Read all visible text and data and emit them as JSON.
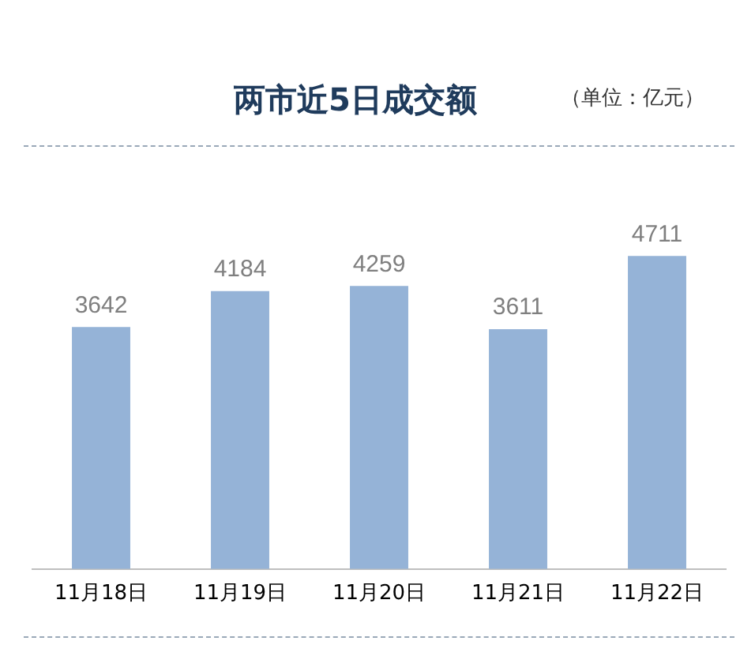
{
  "chart_data": {
    "type": "bar",
    "title": "两市近5日成交额",
    "annotations": [
      "（单位：亿元）"
    ],
    "categories": [
      "11月18日",
      "11月19日",
      "11月20日",
      "11月21日",
      "11月22日"
    ],
    "values": [
      3642,
      4184,
      4259,
      3611,
      4711
    ],
    "color": "#95b3d7",
    "data_labels": true,
    "grid": false,
    "legend": false
  }
}
